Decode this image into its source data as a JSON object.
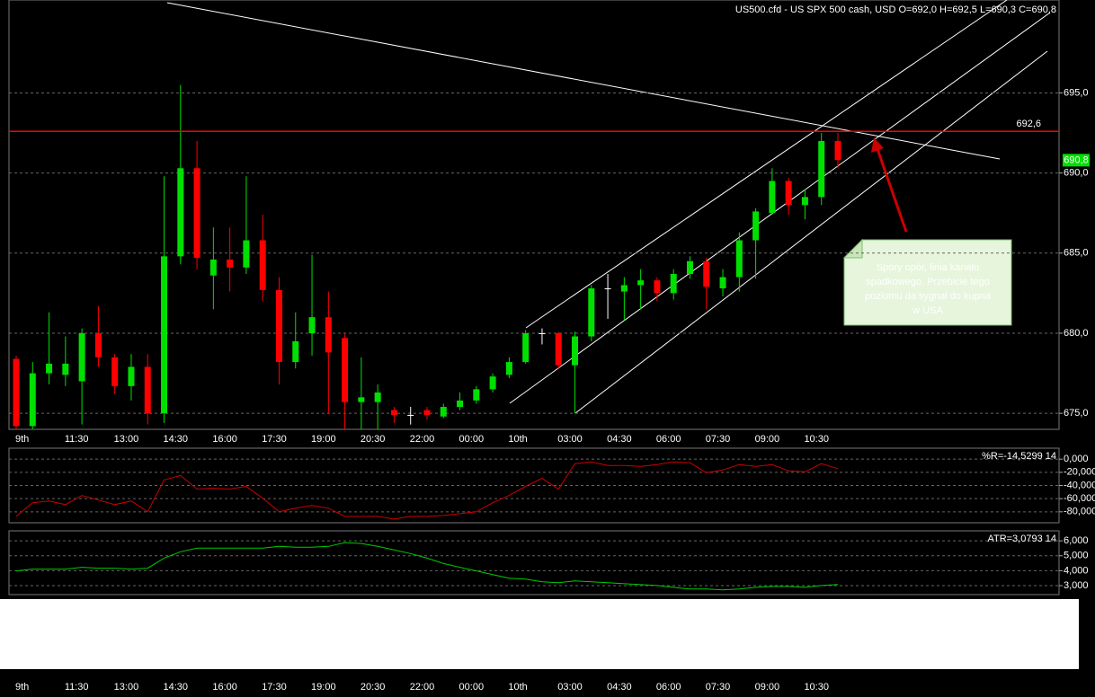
{
  "chart_data": [
    {
      "type": "candlestick",
      "title": "US500.cfd - US SPX 500 cash, USD O=692,0 H=692,5 L=690,3 C=690,8",
      "categories": [
        "9th",
        null,
        null,
        "11:30",
        null,
        null,
        "13:00",
        null,
        null,
        "14:30",
        null,
        null,
        "16:00",
        null,
        null,
        "17:30",
        null,
        null,
        "19:00",
        null,
        null,
        "20:30",
        null,
        null,
        "22:00",
        null,
        null,
        "00:00",
        null,
        null,
        "10th",
        null,
        null,
        "03:00",
        null,
        null,
        "04:30",
        null,
        null,
        "06:00",
        null,
        null,
        "07:30",
        null,
        null,
        "09:00",
        null,
        null,
        "10:30",
        null,
        null
      ],
      "open": [
        678.4,
        674.2,
        677.5,
        677.4,
        677.0,
        680.0,
        678.5,
        676.7,
        677.9,
        675.0,
        684.8,
        690.3,
        683.6,
        684.6,
        684.1,
        685.8,
        682.7,
        678.2,
        680.0,
        681.0,
        679.7,
        675.7,
        675.7,
        675.2,
        674.9,
        675.2,
        674.8,
        675.4,
        675.8,
        676.5,
        677.4,
        678.2,
        680.0,
        680.0,
        678.0,
        679.8,
        682.8,
        682.6,
        683.0,
        683.3,
        682.5,
        683.7,
        684.5,
        682.8,
        683.5,
        685.8,
        687.5,
        689.5,
        688.0,
        688.5,
        692.0
      ],
      "high": [
        678.6,
        678.2,
        681.3,
        679.8,
        680.3,
        681.7,
        678.7,
        678.7,
        678.7,
        689.8,
        695.5,
        692.0,
        686.6,
        686.6,
        689.8,
        687.4,
        683.5,
        681.3,
        684.9,
        682.6,
        680.0,
        678.5,
        676.8,
        675.4,
        675.4,
        675.4,
        675.6,
        676.3,
        676.7,
        677.5,
        678.5,
        680.2,
        680.3,
        680.1,
        680.1,
        683.0,
        683.7,
        683.5,
        684.0,
        683.5,
        684.0,
        684.8,
        684.7,
        684.0,
        686.3,
        687.8,
        690.3,
        689.7,
        689.0,
        692.5,
        692.5
      ],
      "low": [
        674.0,
        674.0,
        676.8,
        676.7,
        674.3,
        677.9,
        676.2,
        675.8,
        674.3,
        674.4,
        684.3,
        684.0,
        681.5,
        682.6,
        683.7,
        682.0,
        676.8,
        677.8,
        678.6,
        675.0,
        674.0,
        674.0,
        674.0,
        674.4,
        674.3,
        674.6,
        674.7,
        675.2,
        675.6,
        676.3,
        677.2,
        678.1,
        679.3,
        677.8,
        675.0,
        679.5,
        680.9,
        680.8,
        681.5,
        682.0,
        682.1,
        683.4,
        681.5,
        682.3,
        682.6,
        683.4,
        687.4,
        687.4,
        687.1,
        688.0,
        690.3
      ],
      "close": [
        674.2,
        677.5,
        678.1,
        678.1,
        680.0,
        678.5,
        676.7,
        677.9,
        675.0,
        684.8,
        690.3,
        684.7,
        684.6,
        684.1,
        685.8,
        682.7,
        678.2,
        679.5,
        681.0,
        678.8,
        675.7,
        676.0,
        676.3,
        674.9,
        674.9,
        674.9,
        675.4,
        675.8,
        676.5,
        677.3,
        678.2,
        680.0,
        680.0,
        678.0,
        679.8,
        682.8,
        682.8,
        683.0,
        683.3,
        682.5,
        683.7,
        684.5,
        682.9,
        683.5,
        685.8,
        687.6,
        689.5,
        688.0,
        688.5,
        692.0,
        690.8
      ],
      "up_color": "#00e000",
      "down_color": "#ff0000",
      "doji_color": "#ffffff",
      "ylim": [
        674.0,
        700.8
      ],
      "yticks": [
        {
          "value": 675,
          "label": "675,0"
        },
        {
          "value": 680,
          "label": "680,0"
        },
        {
          "value": 685,
          "label": "685,0"
        },
        {
          "value": 690,
          "label": "690,0"
        },
        {
          "value": 695,
          "label": "695,0"
        }
      ],
      "grid": true,
      "hline": {
        "value": 692.6,
        "label": "692,6",
        "color": "#ff0000"
      },
      "last_price": {
        "value": 690.8,
        "label": "690,8",
        "color": "#00e000"
      },
      "annotation": [
        "Spory opór, linia kanału",
        "spadkowego. Przebicie tego",
        "poziomu da sygnał do kupna",
        "w USA"
      ]
    },
    {
      "type": "line",
      "title": "%R=-14,5299 14",
      "color": "#cc0000",
      "values": [
        -86.9,
        -66.2,
        -63.4,
        -69.0,
        -55.2,
        -62.1,
        -69.0,
        -63.4,
        -80.0,
        -31.7,
        -24.8,
        -45.5,
        -44.1,
        -45.5,
        -41.4,
        -59.3,
        -80.0,
        -74.5,
        -70.3,
        -74.5,
        -86.9,
        -86.9,
        -86.9,
        -91.0,
        -86.9,
        -86.9,
        -85.5,
        -82.8,
        -80.0,
        -66.2,
        -55.2,
        -41.4,
        -29.0,
        -45.5,
        -6.9,
        -4.1,
        -9.7,
        -9.7,
        -11.0,
        -8.3,
        -4.1,
        -5.5,
        -20.7,
        -16.6,
        -8.3,
        -11.0,
        -8.3,
        -17.9,
        -19.3,
        -6.9,
        -14.5299
      ],
      "ylim": [
        -96.6,
        16.6
      ],
      "yticks": [
        {
          "value": 0,
          "label": "0,000"
        },
        {
          "value": -20,
          "label": "-20,000"
        },
        {
          "value": -40,
          "label": "-40,000"
        },
        {
          "value": -60,
          "label": "-60,000"
        },
        {
          "value": -80,
          "label": "-80,000"
        }
      ],
      "grid": true
    },
    {
      "type": "line",
      "title": "ATR=3,0793 14",
      "color": "#00cc00",
      "values": [
        3.99,
        4.11,
        4.11,
        4.11,
        4.23,
        4.17,
        4.17,
        4.11,
        4.17,
        4.84,
        5.27,
        5.51,
        5.51,
        5.51,
        5.51,
        5.51,
        5.63,
        5.57,
        5.57,
        5.63,
        5.88,
        5.82,
        5.63,
        5.39,
        5.15,
        4.84,
        4.48,
        4.23,
        3.99,
        3.74,
        3.5,
        3.44,
        3.26,
        3.2,
        3.32,
        3.26,
        3.2,
        3.13,
        3.07,
        3.01,
        2.89,
        2.77,
        2.77,
        2.71,
        2.77,
        2.89,
        2.95,
        2.95,
        2.89,
        3.01,
        3.0793
      ],
      "ylim": [
        2.4,
        6.67
      ],
      "yticks": [
        {
          "value": 3,
          "label": "3,000"
        },
        {
          "value": 4,
          "label": "4,000"
        },
        {
          "value": 5,
          "label": "5,000"
        },
        {
          "value": 6,
          "label": "6,000"
        }
      ],
      "grid": true
    }
  ]
}
